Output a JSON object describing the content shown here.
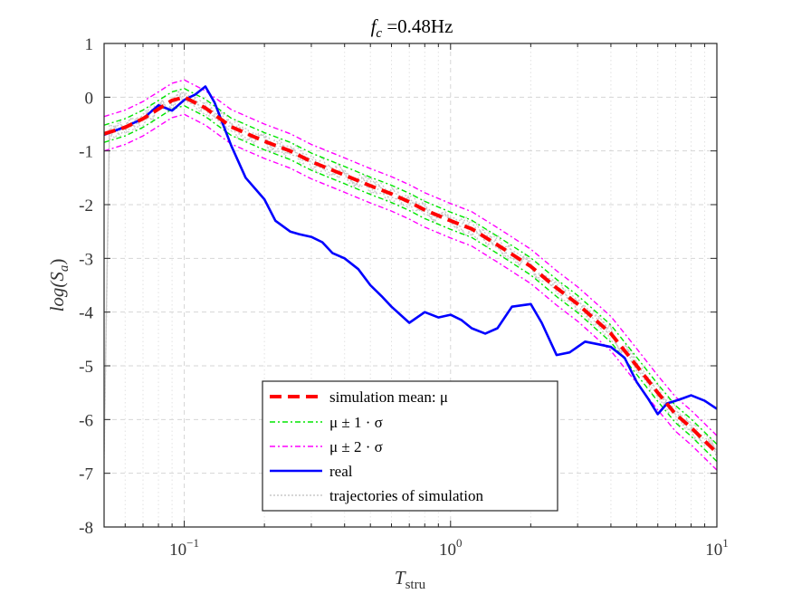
{
  "chart_data": {
    "type": "line",
    "title": "f_c =0.48Hz",
    "title_parts": {
      "var": "f",
      "sub": "c",
      "rest": " =0.48Hz"
    },
    "xlabel_parts": {
      "var": "T",
      "sub": "stru"
    },
    "ylabel": "log(S_a)",
    "ylabel_parts": {
      "pre": "log(",
      "var": "S",
      "sub": "a",
      "post": ")"
    },
    "xscale": "log",
    "xlim": [
      0.05,
      10
    ],
    "ylim": [
      -8,
      1
    ],
    "x_ticks": [
      {
        "value": 0.1,
        "base": "10",
        "exp": "−1"
      },
      {
        "value": 1,
        "base": "10",
        "exp": "0"
      },
      {
        "value": 10,
        "base": "10",
        "exp": "1"
      }
    ],
    "y_ticks": [
      {
        "value": 1,
        "label": "1"
      },
      {
        "value": 0,
        "label": "0"
      },
      {
        "value": -1,
        "label": "-1"
      },
      {
        "value": -2,
        "label": "-2"
      },
      {
        "value": -3,
        "label": "-3"
      },
      {
        "value": -4,
        "label": "-4"
      },
      {
        "value": -5,
        "label": "-5"
      },
      {
        "value": -6,
        "label": "-6"
      },
      {
        "value": -7,
        "label": "-7"
      },
      {
        "value": -8,
        "label": "-8"
      }
    ],
    "grid": true,
    "legend_position": "bottom-center",
    "x": [
      0.05,
      0.06,
      0.07,
      0.08,
      0.09,
      0.1,
      0.12,
      0.15,
      0.2,
      0.25,
      0.3,
      0.4,
      0.5,
      0.6,
      0.7,
      0.8,
      1.0,
      1.2,
      1.5,
      2.0,
      2.5,
      3.0,
      4.0,
      5.0,
      6.0,
      7.0,
      8.0,
      10.0
    ],
    "mean": [
      -0.68,
      -0.56,
      -0.4,
      -0.22,
      -0.06,
      0.0,
      -0.2,
      -0.55,
      -0.82,
      -1.0,
      -1.2,
      -1.45,
      -1.65,
      -1.8,
      -1.95,
      -2.1,
      -2.3,
      -2.45,
      -2.75,
      -3.15,
      -3.55,
      -3.85,
      -4.4,
      -5.0,
      -5.5,
      -5.9,
      -6.15,
      -6.62
    ],
    "std_offsets": [
      0.16,
      0.32
    ],
    "series": [
      {
        "name": "simulation mean: μ",
        "label_parts": {
          "text": "simulation mean: μ"
        },
        "color": "#ff0000",
        "style": "dashed",
        "role": "mean"
      },
      {
        "name": "μ ± 1 · σ",
        "label_parts": {
          "text": "μ ± 1 · σ"
        },
        "color": "#00e600",
        "style": "dashdot",
        "role": "band1"
      },
      {
        "name": "μ ± 2 · σ",
        "label_parts": {
          "text": "μ ± 2 · σ"
        },
        "color": "#ff00ff",
        "style": "dashdot",
        "role": "band2"
      },
      {
        "name": "real",
        "label_parts": {
          "text": "real"
        },
        "color": "#0000ff",
        "style": "solid",
        "role": "real",
        "x": [
          0.05,
          0.06,
          0.07,
          0.08,
          0.09,
          0.1,
          0.11,
          0.12,
          0.13,
          0.15,
          0.17,
          0.2,
          0.22,
          0.25,
          0.27,
          0.3,
          0.33,
          0.36,
          0.4,
          0.45,
          0.5,
          0.55,
          0.6,
          0.7,
          0.8,
          0.9,
          1.0,
          1.1,
          1.2,
          1.35,
          1.5,
          1.7,
          2.0,
          2.2,
          2.5,
          2.8,
          3.2,
          3.6,
          4.0,
          4.5,
          5.0,
          5.5,
          6.0,
          6.5,
          7.0,
          7.5,
          8.0,
          9.0,
          10.0
        ],
        "values": [
          -0.7,
          -0.55,
          -0.4,
          -0.15,
          -0.25,
          -0.05,
          0.05,
          0.2,
          -0.1,
          -0.9,
          -1.5,
          -1.9,
          -2.3,
          -2.5,
          -2.55,
          -2.6,
          -2.7,
          -2.9,
          -3.0,
          -3.2,
          -3.5,
          -3.7,
          -3.9,
          -4.2,
          -4.0,
          -4.1,
          -4.05,
          -4.15,
          -4.3,
          -4.4,
          -4.3,
          -3.9,
          -3.85,
          -4.2,
          -4.8,
          -4.75,
          -4.55,
          -4.6,
          -4.65,
          -4.85,
          -5.3,
          -5.6,
          -5.9,
          -5.7,
          -5.65,
          -5.6,
          -5.55,
          -5.65,
          -5.8
        ]
      },
      {
        "name": "trajectories of simulation",
        "label_parts": {
          "text": "trajectories of simulation"
        },
        "color": "#c8c8c8",
        "style": "dotted",
        "role": "trajectories"
      }
    ]
  }
}
